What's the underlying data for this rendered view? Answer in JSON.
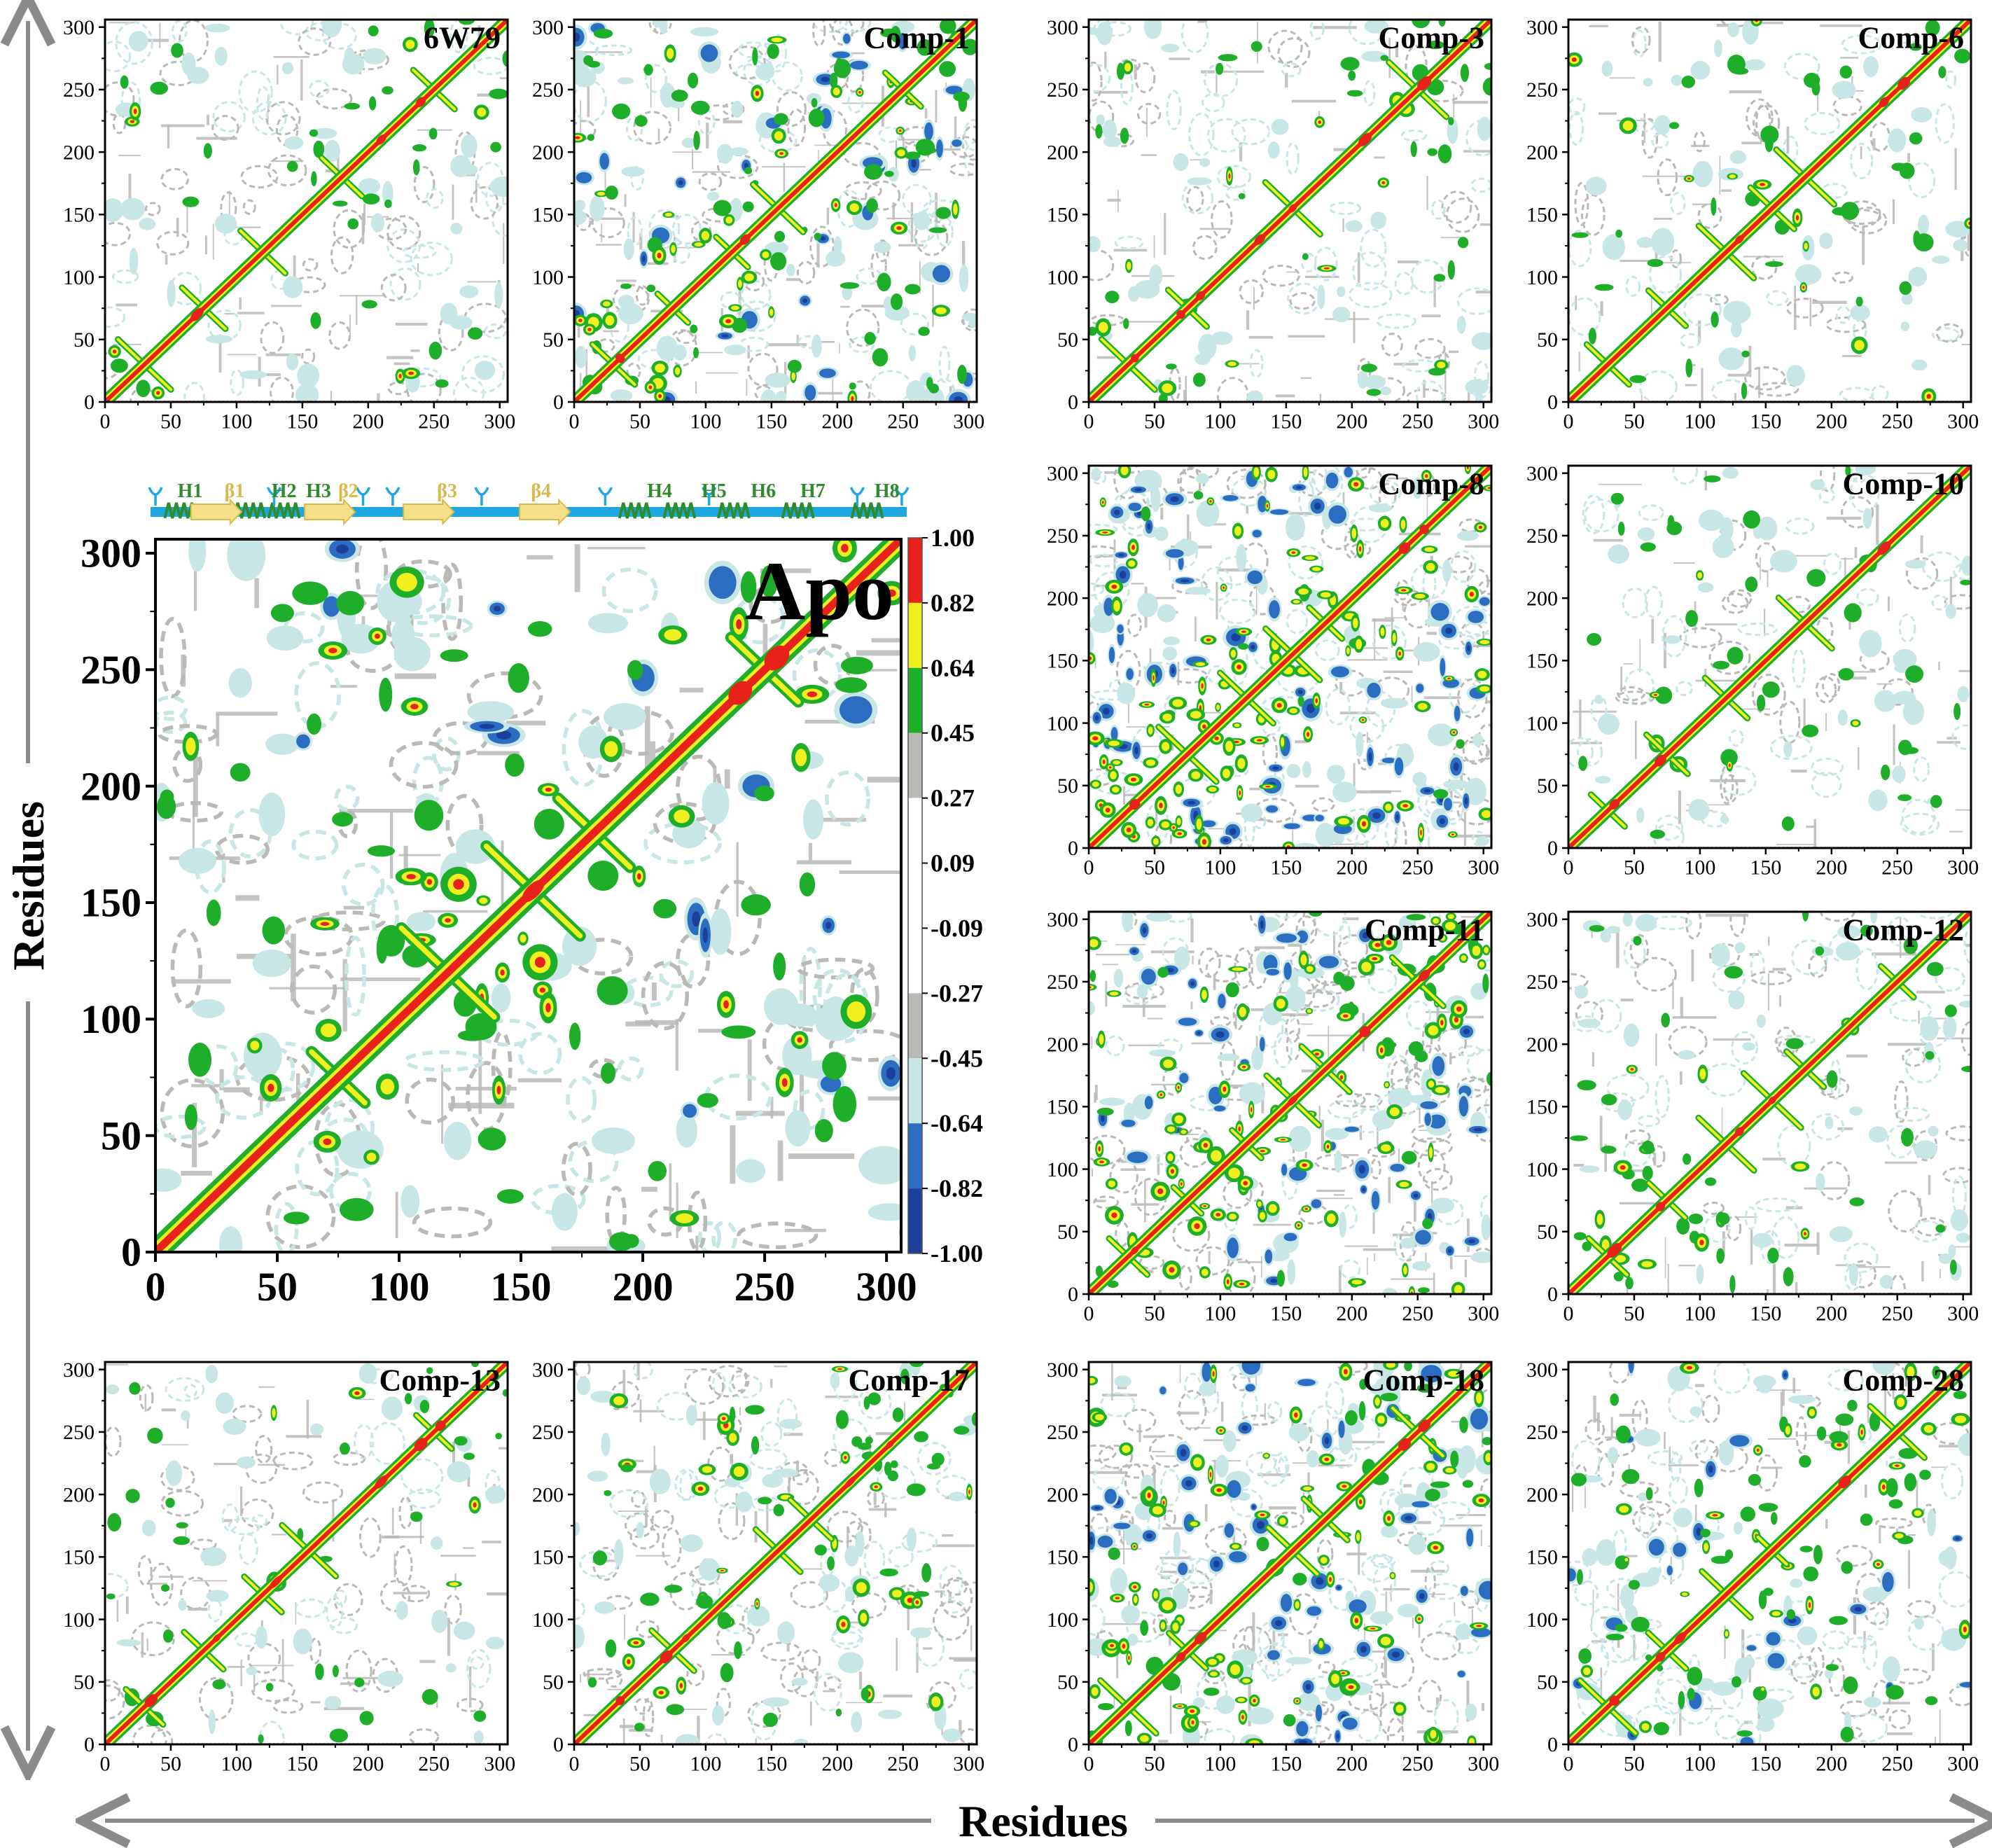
{
  "figure": {
    "axis_label_x": "Residues",
    "axis_label_y": "Residues",
    "colorbar": {
      "ticks": [
        "1.00",
        "0.82",
        "0.64",
        "0.45",
        "0.27",
        "0.09",
        "-0.09",
        "-0.27",
        "-0.45",
        "-0.64",
        "-0.82",
        "-1.00"
      ],
      "colors": [
        "#e8221b",
        "#f0f020",
        "#1fae2a",
        "#b9b9b6",
        "#ffffff",
        "#ffffff",
        "#ffffff",
        "#b9b9b6",
        "#c9e6e6",
        "#2a6dc1",
        "#1d3f9c"
      ]
    },
    "secondary_structure": {
      "labels": [
        "H1",
        "β1",
        "H2",
        "H3",
        "β2",
        "β3",
        "β4",
        "H4",
        "H5",
        "H6",
        "H7",
        "H8"
      ]
    }
  },
  "chart_data": [
    {
      "type": "heatmap",
      "title": "6W79",
      "xlabel": "Residues",
      "ylabel": "Residues",
      "xlim": [
        0,
        306
      ],
      "ylim": [
        0,
        306
      ],
      "xticks": [
        0,
        50,
        100,
        150,
        200,
        250,
        300
      ],
      "yticks": [
        0,
        50,
        100,
        150,
        200,
        250,
        300
      ],
      "seed": 11,
      "blue": 0.0,
      "green": 0.25,
      "gray": 0.55,
      "hot": 0.22
    },
    {
      "type": "heatmap",
      "title": "Comp-1",
      "xlabel": "Residues",
      "ylabel": "Residues",
      "xlim": [
        0,
        306
      ],
      "ylim": [
        0,
        306
      ],
      "xticks": [
        0,
        50,
        100,
        150,
        200,
        250,
        300
      ],
      "yticks": [
        0,
        50,
        100,
        150,
        200,
        250,
        300
      ],
      "seed": 23,
      "blue": 0.35,
      "green": 0.75,
      "gray": 0.75,
      "hot": 0.6
    },
    {
      "type": "heatmap",
      "title": "Comp-3",
      "xlabel": "Residues",
      "ylabel": "Residues",
      "xlim": [
        0,
        306
      ],
      "ylim": [
        0,
        306
      ],
      "xticks": [
        0,
        50,
        100,
        150,
        200,
        250,
        300
      ],
      "yticks": [
        0,
        50,
        100,
        150,
        200,
        250,
        300
      ],
      "seed": 37,
      "blue": 0.0,
      "green": 0.35,
      "gray": 0.55,
      "hot": 0.25
    },
    {
      "type": "heatmap",
      "title": "Comp-6",
      "xlabel": "Residues",
      "ylabel": "Residues",
      "xlim": [
        0,
        306
      ],
      "ylim": [
        0,
        306
      ],
      "xticks": [
        0,
        50,
        100,
        150,
        200,
        250,
        300
      ],
      "yticks": [
        0,
        50,
        100,
        150,
        200,
        250,
        300
      ],
      "seed": 41,
      "blue": 0.0,
      "green": 0.3,
      "gray": 0.5,
      "hot": 0.25
    },
    {
      "type": "heatmap",
      "title": "Apo",
      "xlabel": "Residues",
      "ylabel": "Residues",
      "xlim": [
        0,
        306
      ],
      "ylim": [
        0,
        306
      ],
      "xticks": [
        0,
        50,
        100,
        150,
        200,
        250,
        300
      ],
      "yticks": [
        0,
        50,
        100,
        150,
        200,
        250,
        300
      ],
      "seed": 53,
      "blue": 0.15,
      "green": 0.6,
      "gray": 0.8,
      "hot": 0.45
    },
    {
      "type": "heatmap",
      "title": "Comp-8",
      "xlabel": "Residues",
      "ylabel": "Residues",
      "xlim": [
        0,
        306
      ],
      "ylim": [
        0,
        306
      ],
      "xticks": [
        0,
        50,
        100,
        150,
        200,
        250,
        300
      ],
      "yticks": [
        0,
        50,
        100,
        150,
        200,
        250,
        300
      ],
      "seed": 67,
      "blue": 0.9,
      "green": 0.85,
      "gray": 0.8,
      "hot": 0.9
    },
    {
      "type": "heatmap",
      "title": "Comp-10",
      "xlabel": "Residues",
      "ylabel": "Residues",
      "xlim": [
        0,
        306
      ],
      "ylim": [
        0,
        306
      ],
      "xticks": [
        0,
        50,
        100,
        150,
        200,
        250,
        300
      ],
      "yticks": [
        0,
        50,
        100,
        150,
        200,
        250,
        300
      ],
      "seed": 71,
      "blue": 0.0,
      "green": 0.25,
      "gray": 0.5,
      "hot": 0.2
    },
    {
      "type": "heatmap",
      "title": "Comp-11",
      "xlabel": "Residues",
      "ylabel": "Residues",
      "xlim": [
        0,
        306
      ],
      "ylim": [
        0,
        306
      ],
      "xticks": [
        0,
        50,
        100,
        150,
        200,
        250,
        300
      ],
      "yticks": [
        0,
        50,
        100,
        150,
        200,
        250,
        300
      ],
      "seed": 83,
      "blue": 0.6,
      "green": 0.85,
      "gray": 0.8,
      "hot": 0.7
    },
    {
      "type": "heatmap",
      "title": "Comp-12",
      "xlabel": "Residues",
      "ylabel": "Residues",
      "xlim": [
        0,
        306
      ],
      "ylim": [
        0,
        306
      ],
      "xticks": [
        0,
        50,
        100,
        150,
        200,
        250,
        300
      ],
      "yticks": [
        0,
        50,
        100,
        150,
        200,
        250,
        300
      ],
      "seed": 97,
      "blue": 0.0,
      "green": 0.35,
      "gray": 0.55,
      "hot": 0.25
    },
    {
      "type": "heatmap",
      "title": "Comp-13",
      "xlabel": "Residues",
      "ylabel": "Residues",
      "xlim": [
        0,
        306
      ],
      "ylim": [
        0,
        306
      ],
      "xticks": [
        0,
        50,
        100,
        150,
        200,
        250,
        300
      ],
      "yticks": [
        0,
        50,
        100,
        150,
        200,
        250,
        300
      ],
      "seed": 101,
      "blue": 0.0,
      "green": 0.25,
      "gray": 0.5,
      "hot": 0.2
    },
    {
      "type": "heatmap",
      "title": "Comp-17",
      "xlabel": "Residues",
      "ylabel": "Residues",
      "xlim": [
        0,
        306
      ],
      "ylim": [
        0,
        306
      ],
      "xticks": [
        0,
        50,
        100,
        150,
        200,
        250,
        300
      ],
      "yticks": [
        0,
        50,
        100,
        150,
        200,
        250,
        300
      ],
      "seed": 113,
      "blue": 0.0,
      "green": 0.5,
      "gray": 0.65,
      "hot": 0.35
    },
    {
      "type": "heatmap",
      "title": "Comp-18",
      "xlabel": "Residues",
      "ylabel": "Residues",
      "xlim": [
        0,
        306
      ],
      "ylim": [
        0,
        306
      ],
      "xticks": [
        0,
        50,
        100,
        150,
        200,
        250,
        300
      ],
      "yticks": [
        0,
        50,
        100,
        150,
        200,
        250,
        300
      ],
      "seed": 127,
      "blue": 0.55,
      "green": 0.8,
      "gray": 0.8,
      "hot": 0.8
    },
    {
      "type": "heatmap",
      "title": "Comp-28",
      "xlabel": "Residues",
      "ylabel": "Residues",
      "xlim": [
        0,
        306
      ],
      "ylim": [
        0,
        306
      ],
      "xticks": [
        0,
        50,
        100,
        150,
        200,
        250,
        300
      ],
      "yticks": [
        0,
        50,
        100,
        150,
        200,
        250,
        300
      ],
      "seed": 131,
      "blue": 0.3,
      "green": 0.6,
      "gray": 0.6,
      "hot": 0.4
    }
  ]
}
